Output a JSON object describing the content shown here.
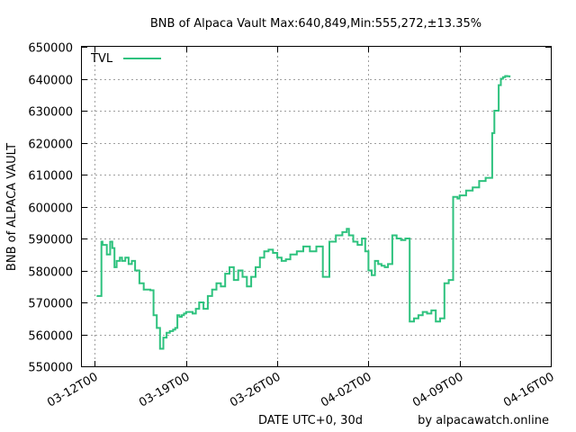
{
  "chart_data": {
    "type": "line",
    "title": "BNB of Alpaca Vault Max:640,849,Min:555,272,±13.35%",
    "xlabel": "DATE UTC+0, 30d",
    "ylabel": "BNB of ALPACA VAULT",
    "credit": "by alpacawatch.online",
    "ylim": [
      550000,
      650000
    ],
    "yticks": [
      550000,
      560000,
      570000,
      580000,
      590000,
      600000,
      610000,
      620000,
      630000,
      640000,
      650000
    ],
    "yticklabels": [
      "550000",
      "560000",
      "570000",
      "580000",
      "590000",
      "600000",
      "610000",
      "620000",
      "630000",
      "640000",
      "650000"
    ],
    "xlim": [
      "03-11T00",
      "04-16T00"
    ],
    "xticks": [
      "03-12T00",
      "03-19T00",
      "03-26T00",
      "04-02T00",
      "04-09T00",
      "04-16T00"
    ],
    "xticklabels": [
      "03-12T00",
      "03-19T00",
      "03-26T00",
      "04-02T00",
      "04-09T00",
      "04-16T00"
    ],
    "grid": true,
    "legend_position": "top-left",
    "series": [
      {
        "name": "TVL",
        "color": "#2ec27e",
        "x": [
          "03-12T04",
          "03-12T12",
          "03-12T14",
          "03-12T22",
          "03-13T04",
          "03-13T08",
          "03-13T12",
          "03-13T16",
          "03-13T22",
          "03-14T02",
          "03-14T08",
          "03-14T14",
          "03-14T20",
          "03-15T02",
          "03-15T10",
          "03-15T18",
          "03-16T00",
          "03-16T06",
          "03-16T12",
          "03-16T18",
          "03-17T00",
          "03-17T06",
          "03-17T12",
          "03-17T18",
          "03-18T00",
          "03-18T04",
          "03-18T08",
          "03-18T12",
          "03-18T16",
          "03-18T20",
          "03-19T00",
          "03-19T06",
          "03-19T12",
          "03-19T18",
          "03-20T00",
          "03-20T08",
          "03-20T16",
          "03-21T00",
          "03-21T08",
          "03-21T16",
          "03-22T00",
          "03-22T08",
          "03-22T16",
          "03-23T00",
          "03-23T08",
          "03-23T16",
          "03-24T00",
          "03-24T08",
          "03-24T16",
          "03-25T00",
          "03-25T08",
          "03-25T16",
          "03-26T00",
          "03-26T08",
          "03-26T16",
          "03-27T00",
          "03-27T12",
          "03-28T00",
          "03-28T12",
          "03-29T00",
          "03-29T12",
          "03-30T00",
          "03-30T12",
          "03-31T00",
          "03-31T08",
          "03-31T12",
          "03-31T20",
          "04-01T04",
          "04-01T12",
          "04-01T18",
          "04-02T00",
          "04-02T06",
          "04-02T12",
          "04-02T18",
          "04-03T00",
          "04-03T06",
          "04-03T12",
          "04-03T20",
          "04-04T04",
          "04-04T12",
          "04-04T20",
          "04-05T04",
          "04-05T12",
          "04-05T20",
          "04-06T04",
          "04-06T12",
          "04-06T20",
          "04-07T04",
          "04-07T12",
          "04-07T20",
          "04-08T04",
          "04-08T12",
          "04-08T20",
          "04-09T00",
          "04-09T12",
          "04-10T00",
          "04-10T12",
          "04-11T00",
          "04-11T12",
          "04-11T16",
          "04-12T00",
          "04-12T04",
          "04-12T08",
          "04-12T12",
          "04-12T16",
          "04-12T20"
        ],
        "values": [
          572000,
          589000,
          588000,
          585000,
          589000,
          587000,
          581000,
          583000,
          584000,
          583000,
          584000,
          582000,
          583000,
          580000,
          576000,
          574000,
          574000,
          573800,
          566000,
          562000,
          555500,
          559000,
          560500,
          561000,
          561500,
          562000,
          566000,
          565500,
          566000,
          566500,
          567000,
          567000,
          566500,
          568000,
          570000,
          568000,
          572000,
          574000,
          576000,
          575000,
          579000,
          581000,
          577000,
          580000,
          578000,
          575000,
          578000,
          581000,
          584000,
          586000,
          586500,
          585500,
          584000,
          583000,
          583500,
          585000,
          586000,
          587500,
          586000,
          587500,
          578000,
          589000,
          591000,
          592000,
          593000,
          591000,
          589000,
          588000,
          590000,
          586000,
          580000,
          578500,
          583000,
          582000,
          581500,
          581000,
          582000,
          591000,
          590000,
          589500,
          590000,
          564000,
          565000,
          566000,
          567000,
          566500,
          567500,
          564000,
          565000,
          576000,
          577000,
          603000,
          602500,
          603500,
          605000,
          606000,
          608000,
          609000,
          623000,
          630000,
          638000,
          640000,
          640500,
          640849,
          640800,
          640600
        ]
      }
    ]
  }
}
